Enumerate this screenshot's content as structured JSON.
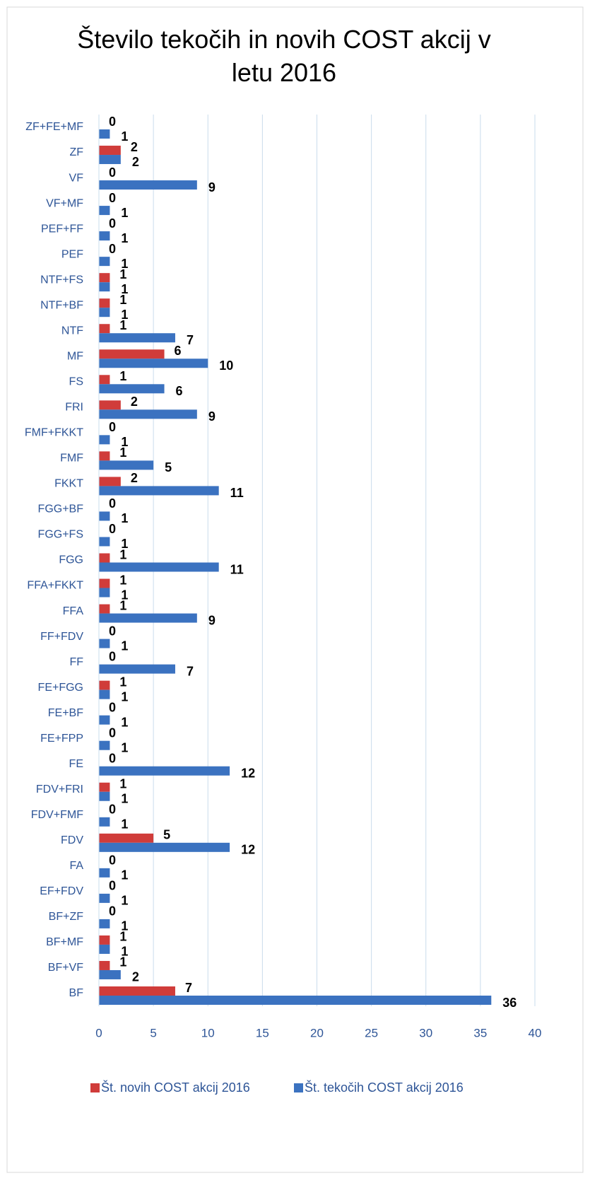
{
  "chart_data": {
    "type": "bar",
    "orientation": "horizontal",
    "title": "Število tekočih in novih COST akcij v letu 2016",
    "categories": [
      "ZF+FE+MF",
      "ZF",
      "VF",
      "VF+MF",
      "PEF+FF",
      "PEF",
      "NTF+FS",
      "NTF+BF",
      "NTF",
      "MF",
      "FS",
      "FRI",
      "FMF+FKKT",
      "FMF",
      "FKKT",
      "FGG+BF",
      "FGG+FS",
      "FGG",
      "FFA+FKKT",
      "FFA",
      "FF+FDV",
      "FF",
      "FE+FGG",
      "FE+BF",
      "FE+FPP",
      "FE",
      "FDV+FRI",
      "FDV+FMF",
      "FDV",
      "FA",
      "EF+FDV",
      "BF+ZF",
      "BF+MF",
      "BF+VF",
      "BF"
    ],
    "series": [
      {
        "name": "Št. novih COST akcij 2016",
        "color": "#d03c3a",
        "values": [
          0,
          2,
          0,
          0,
          0,
          0,
          1,
          1,
          1,
          6,
          1,
          2,
          0,
          1,
          2,
          0,
          0,
          1,
          1,
          1,
          0,
          0,
          1,
          0,
          0,
          0,
          1,
          0,
          5,
          0,
          0,
          0,
          1,
          1,
          7
        ]
      },
      {
        "name": "Št. tekočih COST akcij 2016",
        "color": "#3b72c0",
        "values": [
          1,
          2,
          9,
          1,
          1,
          1,
          1,
          1,
          7,
          10,
          6,
          9,
          1,
          5,
          11,
          1,
          1,
          11,
          1,
          9,
          1,
          7,
          1,
          1,
          1,
          12,
          1,
          1,
          12,
          1,
          1,
          1,
          1,
          2,
          36
        ]
      }
    ],
    "xlim": [
      0,
      40
    ],
    "xticks": [
      0,
      5,
      10,
      15,
      20,
      25,
      30,
      35,
      40
    ],
    "grid": true,
    "legend": "bottom"
  }
}
